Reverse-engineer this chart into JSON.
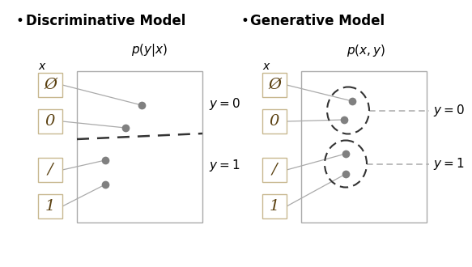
{
  "bg_color": "#ffffff",
  "disc_title": "Discriminative Model",
  "gen_title": "Generative Model",
  "disc_formula": "$p(y|x)$",
  "gen_formula": "$p(x, y)$",
  "disc_x_label": "$x$",
  "gen_x_label": "$x$",
  "disc_y0_label": "$y = 0$",
  "disc_y1_label": "$y = 1$",
  "gen_y0_label": "$y = 0$",
  "gen_y1_label": "$y = 1$",
  "digit_chars": [
    "Ø",
    "0",
    "/",
    "1"
  ],
  "dot_color": "#808080",
  "line_color": "#aaaaaa",
  "box_ec": "#c8b890",
  "outer_box_ec": "#aaaaaa",
  "dashed_color": "#333333",
  "ellipse_color": "#333333",
  "dashed_line_color": "#aaaaaa",
  "title_fontsize": 12,
  "label_fontsize": 10,
  "formula_fontsize": 11,
  "digit_fontsize": 13,
  "ylabel_fontsize": 11
}
